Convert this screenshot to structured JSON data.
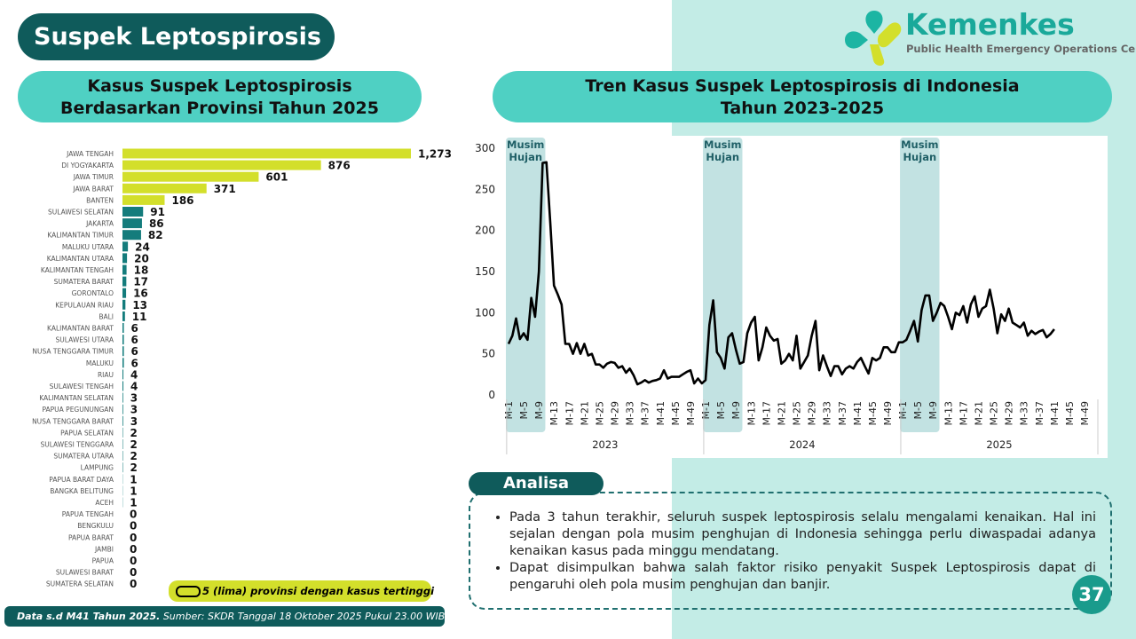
{
  "header": {
    "title": "Suspek Leptospirosis"
  },
  "logo": {
    "name": "Kemenkes",
    "subtitle": "Public Health Emergency Operations Center"
  },
  "chart_data": [
    {
      "type": "bar",
      "orientation": "horizontal",
      "title": [
        "Kasus Suspek Leptospirosis",
        "Berdasarkan Provinsi Tahun 2025"
      ],
      "categories": [
        "JAWA TENGAH",
        "DI YOGYAKARTA",
        "JAWA TIMUR",
        "JAWA BARAT",
        "BANTEN",
        "SULAWESI SELATAN",
        "JAKARTA",
        "KALIMANTAN TIMUR",
        "MALUKU UTARA",
        "KALIMANTAN UTARA",
        "KALIMANTAN TENGAH",
        "SUMATERA BARAT",
        "GORONTALO",
        "KEPULAUAN RIAU",
        "BALI",
        "KALIMANTAN BARAT",
        "SULAWESI UTARA",
        "NUSA TENGGARA TIMUR",
        "MALUKU",
        "RIAU",
        "SULAWESI TENGAH",
        "KALIMANTAN SELATAN",
        "PAPUA PEGUNUNGAN",
        "NUSA TENGGARA BARAT",
        "PAPUA SELATAN",
        "SULAWESI TENGGARA",
        "SUMATERA UTARA",
        "LAMPUNG",
        "PAPUA BARAT DAYA",
        "BANGKA BELITUNG",
        "ACEH",
        "PAPUA TENGAH",
        "BENGKULU",
        "PAPUA BARAT",
        "JAMBI",
        "PAPUA",
        "SULAWESI BARAT",
        "SUMATERA SELATAN"
      ],
      "values": [
        1273,
        876,
        601,
        371,
        186,
        91,
        86,
        82,
        24,
        20,
        18,
        17,
        16,
        13,
        11,
        6,
        6,
        6,
        6,
        4,
        4,
        3,
        3,
        3,
        2,
        2,
        2,
        2,
        1,
        1,
        1,
        0,
        0,
        0,
        0,
        0,
        0,
        0
      ],
      "value_labels": [
        "1,273",
        "876",
        "601",
        "371",
        "186",
        "91",
        "86",
        "82",
        "24",
        "20",
        "18",
        "17",
        "16",
        "13",
        "11",
        "6",
        "6",
        "6",
        "6",
        "4",
        "4",
        "3",
        "3",
        "3",
        "2",
        "2",
        "2",
        "2",
        "1",
        "1",
        "1",
        "0",
        "0",
        "0",
        "0",
        "0",
        "0",
        "0"
      ],
      "colors": [
        "#d3df2b",
        "#d3df2b",
        "#d3df2b",
        "#d3df2b",
        "#d3df2b",
        "#147c7c",
        "#147c7c",
        "#147c7c",
        "#147c7c",
        "#147c7c",
        "#147c7c",
        "#147c7c",
        "#147c7c",
        "#147c7c",
        "#147c7c",
        "#147c7c",
        "#147c7c",
        "#147c7c",
        "#147c7c",
        "#147c7c",
        "#147c7c",
        "#147c7c",
        "#147c7c",
        "#147c7c",
        "#147c7c",
        "#147c7c",
        "#147c7c",
        "#147c7c",
        "#147c7c",
        "#147c7c",
        "#147c7c",
        "#147c7c",
        "#147c7c",
        "#147c7c",
        "#147c7c",
        "#147c7c",
        "#147c7c",
        "#147c7c"
      ],
      "legend": {
        "label": "5 (lima) provinsi dengan kasus tertinggi",
        "color": "#d3df2b"
      }
    },
    {
      "type": "line",
      "title": [
        "Tren Kasus Suspek Leptospirosis di Indonesia",
        "Tahun 2023-2025"
      ],
      "categories": [
        "M-1",
        null,
        null,
        null,
        "M-5",
        null,
        null,
        null,
        "M-9",
        null,
        null,
        null,
        "M-13",
        null,
        null,
        null,
        "M-17",
        null,
        null,
        null,
        "M-21",
        null,
        null,
        null,
        "M-25",
        null,
        null,
        null,
        "M-29",
        null,
        null,
        null,
        "M-33",
        null,
        null,
        null,
        "M-37",
        null,
        null,
        null,
        "M-41",
        null,
        null,
        null,
        "M-45",
        null,
        null,
        null,
        "M-49",
        null,
        null,
        null,
        "M-1",
        null,
        null,
        null,
        "M-5",
        null,
        null,
        null,
        "M-9",
        null,
        null,
        null,
        "M-13",
        null,
        null,
        null,
        "M-17",
        null,
        null,
        null,
        "M-21",
        null,
        null,
        null,
        "M-25",
        null,
        null,
        null,
        "M-29",
        null,
        null,
        null,
        "M-33",
        null,
        null,
        null,
        "M-37",
        null,
        null,
        null,
        "M-41",
        null,
        null,
        null,
        "M-45",
        null,
        null,
        null,
        "M-49",
        null,
        null,
        null,
        "M-1",
        null,
        null,
        null,
        "M-5",
        null,
        null,
        null,
        "M-9",
        null,
        null,
        null,
        "M-13",
        null,
        null,
        null,
        "M-17",
        null,
        null,
        null,
        "M-21",
        null,
        null,
        null,
        "M-25",
        null,
        null,
        null,
        "M-29",
        null,
        null,
        null,
        "M-33",
        null,
        null,
        null,
        "M-37",
        null,
        null,
        null,
        "M-41",
        null,
        null,
        null,
        "M-45",
        null,
        null,
        null,
        "M-49",
        null,
        null,
        null
      ],
      "values": [
        62,
        72,
        93,
        68,
        75,
        67,
        118,
        95,
        150,
        282,
        283,
        210,
        133,
        122,
        110,
        62,
        62,
        50,
        63,
        50,
        62,
        48,
        50,
        37,
        37,
        33,
        38,
        40,
        39,
        33,
        35,
        27,
        32,
        24,
        13,
        15,
        18,
        15,
        17,
        18,
        20,
        30,
        20,
        22,
        22,
        22,
        25,
        28,
        30,
        14,
        20,
        14,
        18,
        85,
        115,
        52,
        45,
        32,
        70,
        75,
        55,
        38,
        40,
        75,
        88,
        95,
        42,
        58,
        82,
        72,
        66,
        68,
        38,
        42,
        50,
        42,
        72,
        32,
        40,
        48,
        72,
        90,
        30,
        48,
        35,
        23,
        35,
        35,
        25,
        32,
        35,
        32,
        40,
        45,
        35,
        26,
        45,
        42,
        45,
        58,
        58,
        52,
        52,
        64,
        64,
        67,
        78,
        90,
        65,
        103,
        121,
        121,
        90,
        100,
        112,
        108,
        95,
        80,
        100,
        97,
        108,
        88,
        110,
        120,
        95,
        105,
        108,
        128,
        105,
        75,
        98,
        90,
        105,
        88,
        85,
        82,
        88,
        72,
        78,
        74,
        77,
        79,
        70,
        74,
        80,
        null,
        null,
        null,
        null,
        null,
        null,
        null,
        null,
        null,
        null,
        null
      ],
      "color": "#000000",
      "ylim": [
        0,
        300
      ],
      "yticks": [
        0,
        50,
        100,
        150,
        200,
        250,
        300
      ],
      "groups": [
        "2023",
        "2024",
        "2025"
      ],
      "shaded_regions": [
        {
          "label": [
            "Musim",
            "Hujan"
          ],
          "from": 0,
          "to": 9,
          "color": "#c2e2e2"
        },
        {
          "label": [
            "Musim",
            "Hujan"
          ],
          "from": 52,
          "to": 61,
          "color": "#c2e2e2"
        },
        {
          "label": [
            "Musim",
            "Hujan"
          ],
          "from": 104,
          "to": 113,
          "color": "#c2e2e2"
        }
      ]
    }
  ],
  "analysis": {
    "title": "Analisa",
    "bullets": [
      "Pada 3 tahun terakhir, seluruh suspek leptospirosis selalu mengalami kenaikan. Hal ini sejalan dengan pola musim penghujan di Indonesia sehingga perlu diwaspadai adanya kenaikan kasus pada minggu mendatang.",
      "Dapat disimpulkan bahwa salah faktor risiko penyakit Suspek Leptospirosis dapat di pengaruhi oleh pola musim penghujan dan banjir."
    ]
  },
  "footer": {
    "note": "Data s.d M41 Tahun 2025.",
    "source": "Sumber: SKDR Tanggal 18 Oktober 2025 Pukul 23.00 WIB"
  },
  "page_number": 37
}
